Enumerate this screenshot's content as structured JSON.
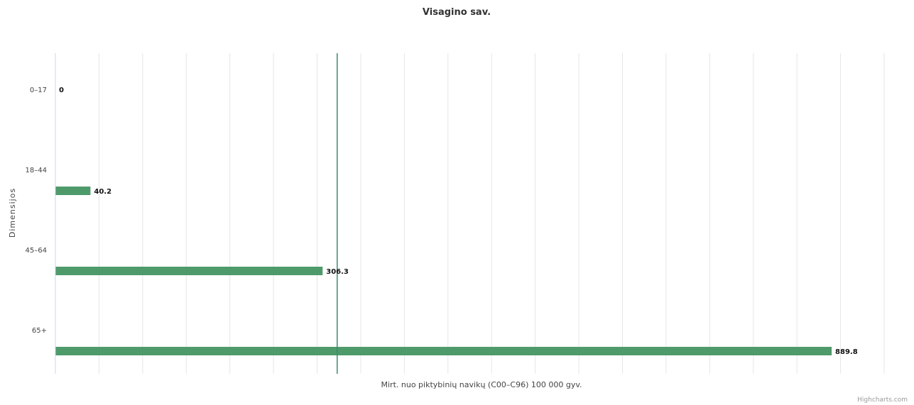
{
  "chart_data": {
    "type": "bar",
    "title": "Visagino sav.",
    "xlabel": "Mirt. nuo piktybinių navikų (C00–C96) 100 000 gyv.",
    "ylabel": "Dimensijos",
    "categories": [
      "0–17",
      "18–44",
      "45–64",
      "65+"
    ],
    "series": [
      {
        "values": [
          0,
          40.2,
          306.3,
          889.8
        ]
      }
    ],
    "data_labels": [
      "0",
      "40.2",
      "306.3",
      "889.8"
    ],
    "reference_line": 323,
    "xlim": [
      0,
      950
    ],
    "grid": true,
    "legend": "none",
    "bar_color": "#4e9a6b",
    "reference_line_color": "#3a8c6e",
    "credits": "Highcharts.com"
  }
}
